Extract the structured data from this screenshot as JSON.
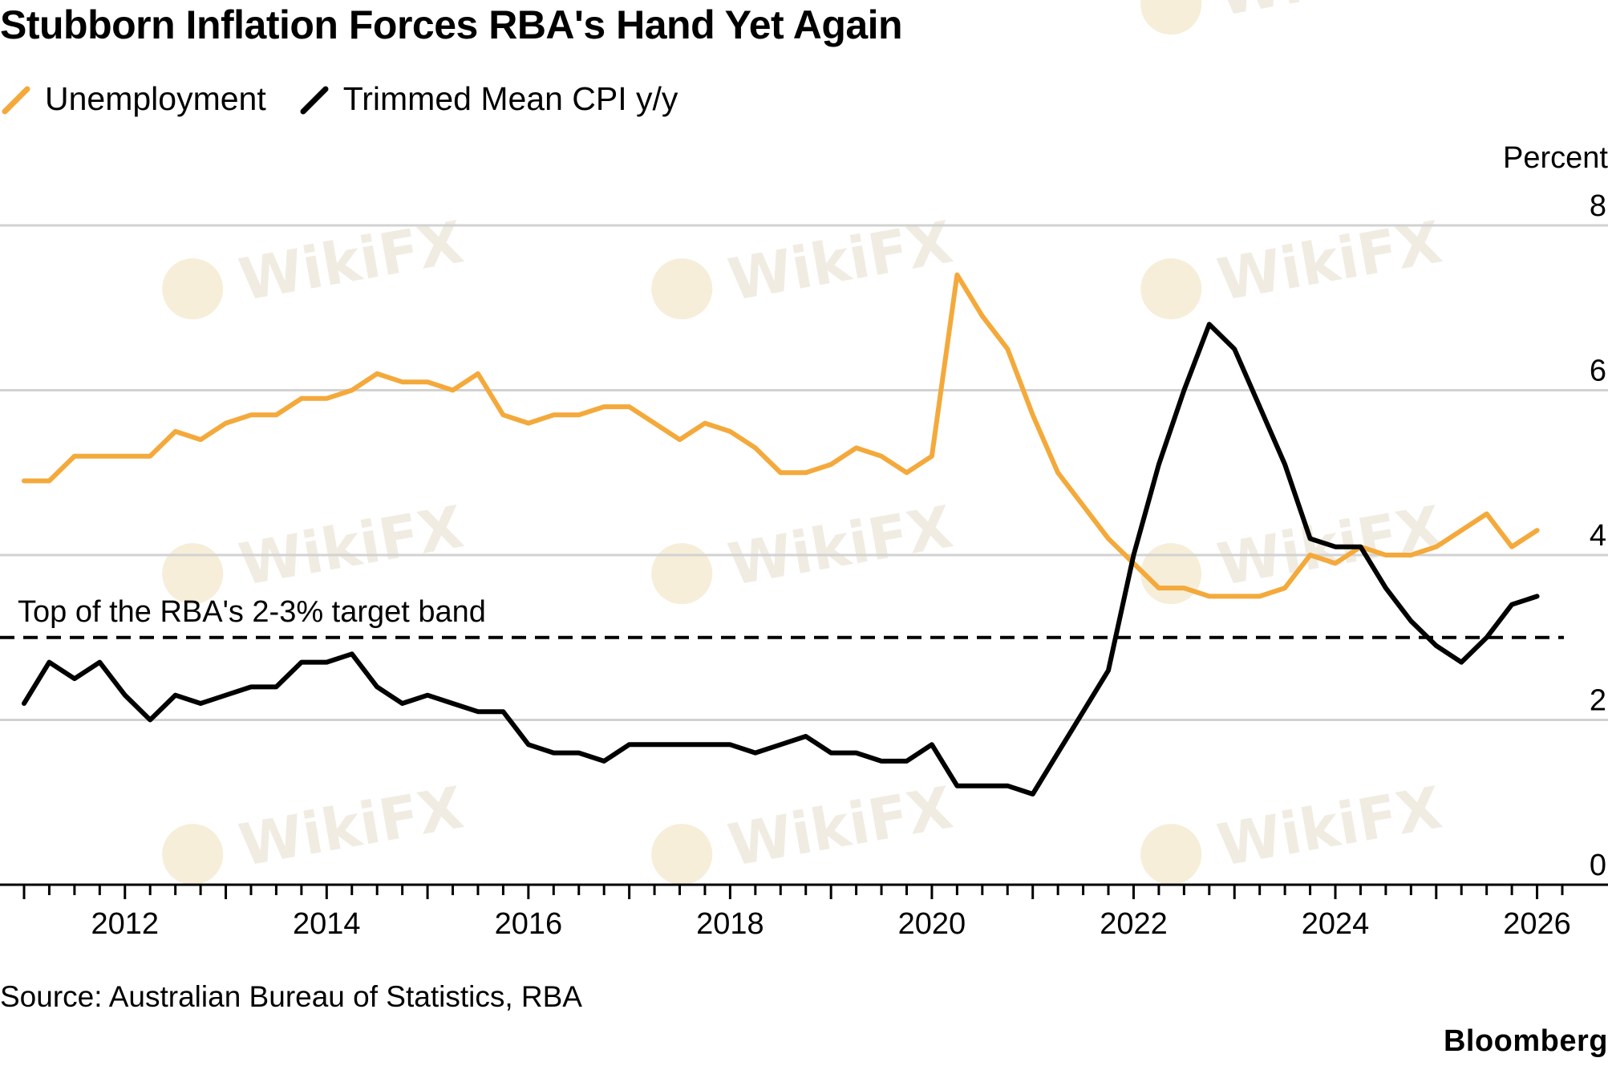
{
  "chart_data": {
    "type": "line",
    "title": "Stubborn Inflation Forces RBA's Hand Yet Again",
    "unit_label": "Percent",
    "x_ticks": [
      "2012",
      "2014",
      "2016",
      "2018",
      "2020",
      "2022",
      "2024",
      "2026"
    ],
    "y_ticks": [
      "0",
      "2",
      "4",
      "6",
      "8"
    ],
    "ylim": [
      0,
      8
    ],
    "xlim": [
      2011.0,
      2026.25
    ],
    "grid": true,
    "legend_position": "top-left",
    "series": [
      {
        "name": "Unemployment",
        "color": "#f4a93b",
        "x": [
          2011.0,
          2011.25,
          2011.5,
          2011.75,
          2012.0,
          2012.25,
          2012.5,
          2012.75,
          2013.0,
          2013.25,
          2013.5,
          2013.75,
          2014.0,
          2014.25,
          2014.5,
          2014.75,
          2015.0,
          2015.25,
          2015.5,
          2015.75,
          2016.0,
          2016.25,
          2016.5,
          2016.75,
          2017.0,
          2017.25,
          2017.5,
          2017.75,
          2018.0,
          2018.25,
          2018.5,
          2018.75,
          2019.0,
          2019.25,
          2019.5,
          2019.75,
          2020.0,
          2020.25,
          2020.5,
          2020.75,
          2021.0,
          2021.25,
          2021.5,
          2021.75,
          2022.0,
          2022.25,
          2022.5,
          2022.75,
          2023.0,
          2023.25,
          2023.5,
          2023.75,
          2024.0,
          2024.25,
          2024.5,
          2024.75,
          2025.0,
          2025.25,
          2025.5,
          2025.75,
          2026.0
        ],
        "values": [
          4.9,
          4.9,
          5.2,
          5.2,
          5.2,
          5.2,
          5.5,
          5.4,
          5.6,
          5.7,
          5.7,
          5.9,
          5.9,
          6.0,
          6.2,
          6.1,
          6.1,
          6.0,
          6.2,
          5.7,
          5.6,
          5.7,
          5.7,
          5.8,
          5.8,
          5.6,
          5.4,
          5.6,
          5.5,
          5.3,
          5.0,
          5.0,
          5.1,
          5.3,
          5.2,
          5.0,
          5.2,
          7.4,
          6.9,
          6.5,
          5.7,
          5.0,
          4.6,
          4.2,
          3.9,
          3.6,
          3.6,
          3.5,
          3.5,
          3.5,
          3.6,
          4.0,
          3.9,
          4.1,
          4.0,
          4.0,
          4.1,
          4.3,
          4.5,
          4.1,
          4.3
        ]
      },
      {
        "name": "Trimmed Mean CPI y/y",
        "color": "#000000",
        "x": [
          2011.0,
          2011.25,
          2011.5,
          2011.75,
          2012.0,
          2012.25,
          2012.5,
          2012.75,
          2013.0,
          2013.25,
          2013.5,
          2013.75,
          2014.0,
          2014.25,
          2014.5,
          2014.75,
          2015.0,
          2015.25,
          2015.5,
          2015.75,
          2016.0,
          2016.25,
          2016.5,
          2016.75,
          2017.0,
          2017.25,
          2017.5,
          2017.75,
          2018.0,
          2018.25,
          2018.5,
          2018.75,
          2019.0,
          2019.25,
          2019.5,
          2019.75,
          2020.0,
          2020.25,
          2020.5,
          2020.75,
          2021.0,
          2021.25,
          2021.5,
          2021.75,
          2022.0,
          2022.25,
          2022.5,
          2022.75,
          2023.0,
          2023.25,
          2023.5,
          2023.75,
          2024.0,
          2024.25,
          2024.5,
          2024.75,
          2025.0,
          2025.25,
          2025.5,
          2025.75,
          2026.0
        ],
        "values": [
          2.2,
          2.7,
          2.5,
          2.7,
          2.3,
          2.0,
          2.3,
          2.2,
          2.3,
          2.4,
          2.4,
          2.7,
          2.7,
          2.8,
          2.4,
          2.2,
          2.3,
          2.2,
          2.1,
          2.1,
          1.7,
          1.6,
          1.6,
          1.5,
          1.7,
          1.7,
          1.7,
          1.7,
          1.7,
          1.6,
          1.7,
          1.8,
          1.6,
          1.6,
          1.5,
          1.5,
          1.7,
          1.2,
          1.2,
          1.2,
          1.1,
          1.6,
          2.1,
          2.6,
          4.0,
          5.1,
          6.0,
          6.8,
          6.5,
          5.8,
          5.1,
          4.2,
          4.1,
          4.1,
          3.6,
          3.2,
          2.9,
          2.7,
          3.0,
          3.4,
          3.5
        ]
      }
    ],
    "annotations": [
      {
        "text": "Top of the RBA's 2-3% target band",
        "y": 3.0,
        "style": "dashed"
      }
    ]
  },
  "source": "Source: Australian Bureau of Statistics, RBA",
  "brand": "Bloomberg",
  "watermark": "WikiFX"
}
